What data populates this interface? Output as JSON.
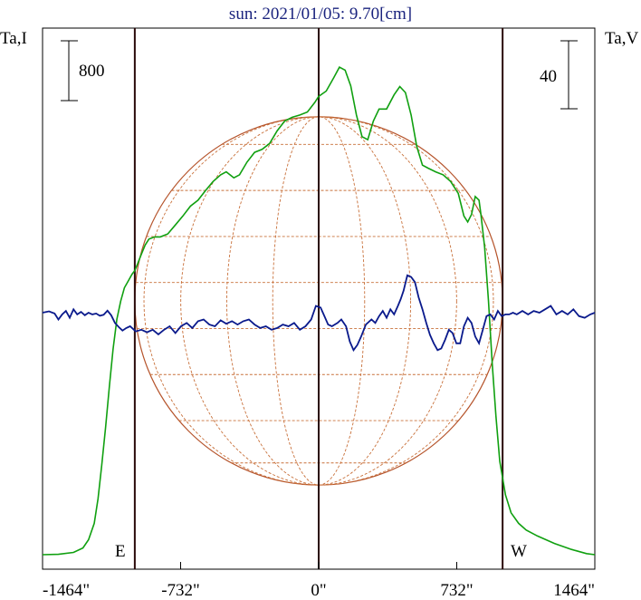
{
  "title": "sun: 2021/01/05: 9.70[cm]",
  "left_axis_label": "Ta,I",
  "right_axis_label": "Ta,V",
  "left_scale_label": "800",
  "right_scale_label": "40",
  "east_label": "E",
  "west_label": "W",
  "colors": {
    "intensity": "#10a010",
    "polarization": "#0a1a8c",
    "disk": "#b5532a",
    "grid": "#c8703a",
    "axis": "#000000",
    "title": "#1a237e"
  },
  "chart_data": {
    "type": "line",
    "title": "sun: 2021/01/05: 9.70[cm]",
    "xlabel": "",
    "ylabel": "",
    "x_unit": "arcsec",
    "xlim": [
      -1464,
      1464
    ],
    "x_ticks": [
      -1464,
      -732,
      0,
      732,
      1464
    ],
    "x_tick_labels": [
      "-1464\"",
      "-732\"",
      "0\"",
      "732\"",
      "1464\""
    ],
    "limb_lines_x": [
      -975,
      0,
      975
    ],
    "solar_radius": 975,
    "left_scale_bar": 800,
    "right_scale_bar": 40,
    "series": [
      {
        "axis": "left",
        "points": [
          [
            -1464,
            0
          ],
          [
            -1380,
            5
          ],
          [
            -1300,
            30
          ],
          [
            -1250,
            90
          ],
          [
            -1220,
            200
          ],
          [
            -1190,
            420
          ],
          [
            -1170,
            750
          ],
          [
            -1150,
            1200
          ],
          [
            -1130,
            1700
          ],
          [
            -1110,
            2250
          ],
          [
            -1090,
            2750
          ],
          [
            -1070,
            3150
          ],
          [
            -1050,
            3390
          ],
          [
            -1030,
            3570
          ],
          [
            -1010,
            3660
          ],
          [
            -990,
            3750
          ],
          [
            -975,
            3800
          ],
          [
            -960,
            3890
          ],
          [
            -940,
            4020
          ],
          [
            -920,
            4140
          ],
          [
            -900,
            4220
          ],
          [
            -870,
            4250
          ],
          [
            -840,
            4250
          ],
          [
            -800,
            4290
          ],
          [
            -760,
            4410
          ],
          [
            -720,
            4530
          ],
          [
            -680,
            4660
          ],
          [
            -640,
            4740
          ],
          [
            -600,
            4870
          ],
          [
            -560,
            4990
          ],
          [
            -520,
            5080
          ],
          [
            -490,
            5120
          ],
          [
            -450,
            5040
          ],
          [
            -420,
            5080
          ],
          [
            -380,
            5250
          ],
          [
            -340,
            5380
          ],
          [
            -300,
            5420
          ],
          [
            -260,
            5500
          ],
          [
            -220,
            5670
          ],
          [
            -180,
            5800
          ],
          [
            -140,
            5850
          ],
          [
            -100,
            5880
          ],
          [
            -60,
            5920
          ],
          [
            -20,
            6050
          ],
          [
            0,
            6130
          ],
          [
            40,
            6200
          ],
          [
            80,
            6380
          ],
          [
            110,
            6520
          ],
          [
            140,
            6480
          ],
          [
            170,
            6270
          ],
          [
            200,
            5880
          ],
          [
            230,
            5590
          ],
          [
            260,
            5550
          ],
          [
            290,
            5800
          ],
          [
            320,
            5960
          ],
          [
            360,
            5960
          ],
          [
            400,
            6150
          ],
          [
            430,
            6260
          ],
          [
            460,
            6180
          ],
          [
            490,
            5880
          ],
          [
            520,
            5460
          ],
          [
            550,
            5210
          ],
          [
            580,
            5170
          ],
          [
            620,
            5120
          ],
          [
            660,
            5080
          ],
          [
            700,
            4990
          ],
          [
            740,
            4830
          ],
          [
            770,
            4530
          ],
          [
            790,
            4450
          ],
          [
            810,
            4550
          ],
          [
            830,
            4790
          ],
          [
            850,
            4740
          ],
          [
            860,
            4550
          ],
          [
            880,
            4110
          ],
          [
            900,
            3400
          ],
          [
            920,
            2550
          ],
          [
            940,
            1850
          ],
          [
            960,
            1250
          ],
          [
            990,
            800
          ],
          [
            1020,
            560
          ],
          [
            1060,
            420
          ],
          [
            1100,
            330
          ],
          [
            1160,
            250
          ],
          [
            1250,
            150
          ],
          [
            1340,
            70
          ],
          [
            1420,
            15
          ],
          [
            1464,
            0
          ]
        ]
      },
      {
        "axis": "right",
        "points": [
          [
            -1464,
            0
          ],
          [
            -1430,
            0.8
          ],
          [
            -1400,
            -0.5
          ],
          [
            -1380,
            -4
          ],
          [
            -1360,
            -1
          ],
          [
            -1340,
            1
          ],
          [
            -1320,
            -3
          ],
          [
            -1300,
            2
          ],
          [
            -1280,
            -1
          ],
          [
            -1260,
            0.5
          ],
          [
            -1240,
            -1.5
          ],
          [
            -1220,
            0
          ],
          [
            -1200,
            -1
          ],
          [
            -1180,
            -0.5
          ],
          [
            -1160,
            -1.8
          ],
          [
            -1140,
            -1.2
          ],
          [
            -1120,
            1.2
          ],
          [
            -1100,
            -1.5
          ],
          [
            -1080,
            -6
          ],
          [
            -1060,
            -8.5
          ],
          [
            -1040,
            -10.5
          ],
          [
            -1020,
            -9
          ],
          [
            -1000,
            -8
          ],
          [
            -970,
            -11
          ],
          [
            -940,
            -10
          ],
          [
            -910,
            -11.5
          ],
          [
            -880,
            -10
          ],
          [
            -850,
            -12.8
          ],
          [
            -820,
            -10
          ],
          [
            -790,
            -8
          ],
          [
            -760,
            -12
          ],
          [
            -730,
            -8
          ],
          [
            -700,
            -6
          ],
          [
            -670,
            -9
          ],
          [
            -640,
            -5
          ],
          [
            -610,
            -4
          ],
          [
            -580,
            -7
          ],
          [
            -550,
            -8
          ],
          [
            -520,
            -4.5
          ],
          [
            -490,
            -6.5
          ],
          [
            -460,
            -5
          ],
          [
            -430,
            -7
          ],
          [
            -400,
            -5
          ],
          [
            -370,
            -4
          ],
          [
            -340,
            -7
          ],
          [
            -310,
            -9
          ],
          [
            -280,
            -8
          ],
          [
            -250,
            -10
          ],
          [
            -220,
            -9
          ],
          [
            -190,
            -7
          ],
          [
            -160,
            -8
          ],
          [
            -130,
            -6
          ],
          [
            -100,
            -10
          ],
          [
            -70,
            -8
          ],
          [
            -40,
            -4
          ],
          [
            -15,
            4
          ],
          [
            10,
            3
          ],
          [
            30,
            -2
          ],
          [
            50,
            -7
          ],
          [
            70,
            -8
          ],
          [
            100,
            -6
          ],
          [
            120,
            -4
          ],
          [
            145,
            -8
          ],
          [
            165,
            -17
          ],
          [
            185,
            -22
          ],
          [
            205,
            -19
          ],
          [
            225,
            -14
          ],
          [
            250,
            -7
          ],
          [
            280,
            -4
          ],
          [
            300,
            -6
          ],
          [
            320,
            -2
          ],
          [
            340,
            1
          ],
          [
            360,
            -3
          ],
          [
            380,
            2
          ],
          [
            400,
            -1
          ],
          [
            420,
            4
          ],
          [
            435,
            8
          ],
          [
            450,
            13
          ],
          [
            470,
            22
          ],
          [
            490,
            21
          ],
          [
            510,
            18
          ],
          [
            530,
            9
          ],
          [
            550,
            2
          ],
          [
            570,
            -6
          ],
          [
            590,
            -13
          ],
          [
            610,
            -18
          ],
          [
            630,
            -22
          ],
          [
            650,
            -21
          ],
          [
            670,
            -16
          ],
          [
            690,
            -10
          ],
          [
            710,
            -12
          ],
          [
            730,
            -18
          ],
          [
            750,
            -18
          ],
          [
            770,
            -8
          ],
          [
            790,
            -3
          ],
          [
            810,
            -6
          ],
          [
            830,
            -14
          ],
          [
            850,
            -18
          ],
          [
            870,
            -10
          ],
          [
            890,
            -2
          ],
          [
            910,
            -1
          ],
          [
            930,
            -4
          ],
          [
            950,
            1
          ],
          [
            970,
            -2
          ],
          [
            990,
            -1
          ],
          [
            1010,
            -1
          ],
          [
            1030,
            0
          ],
          [
            1050,
            -1
          ],
          [
            1080,
            1
          ],
          [
            1110,
            -1
          ],
          [
            1140,
            1
          ],
          [
            1170,
            0
          ],
          [
            1200,
            2
          ],
          [
            1230,
            4
          ],
          [
            1260,
            -1
          ],
          [
            1290,
            1
          ],
          [
            1320,
            -1
          ],
          [
            1350,
            2
          ],
          [
            1380,
            -2
          ],
          [
            1410,
            -3
          ],
          [
            1440,
            -1
          ],
          [
            1464,
            0
          ]
        ]
      }
    ]
  }
}
